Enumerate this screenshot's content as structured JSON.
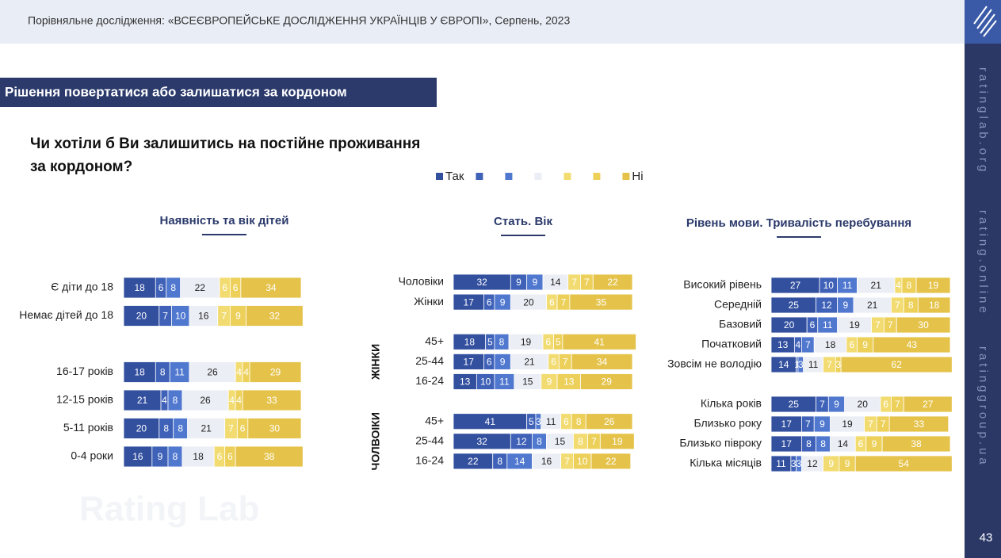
{
  "header": {
    "title": "Порівняльне дослідження: «ВСЕЄВРОПЕЙСЬКЕ ДОСЛІДЖЕННЯ УКРАЇНЦІВ У ЄВРОПІ», Серпень, 2023"
  },
  "section": {
    "title": "Рішення повертатися або залишатися за кордоном"
  },
  "question": {
    "lines": [
      "Чи хотіли б Ви залишитись на постійне проживання",
      "за кордоном?"
    ]
  },
  "sidebar": {
    "links": [
      "ratinglab.org",
      "rating.online",
      "ratinggroup.ua"
    ],
    "page_number": "43"
  },
  "watermark": "Rating Lab",
  "chart_data": [
    {
      "type": "bar",
      "orientation": "horizontal",
      "stacked": true,
      "legend": true,
      "title": "Наявність та вік дітей",
      "categories": [
        "Є діти до 18",
        "Немає дітей до 18",
        null,
        "16-17 років",
        "12-15 років",
        "5-11 років",
        "0-4 роки"
      ],
      "series": [
        {
          "name": "Так",
          "color": "#33509f",
          "label_color": "#ffffff",
          "values": [
            18,
            20,
            null,
            18,
            21,
            20,
            16
          ]
        },
        {
          "name": null,
          "color": "#3f62b8",
          "label_color": "#ffffff",
          "values": [
            6,
            7,
            null,
            8,
            4,
            8,
            9
          ]
        },
        {
          "name": null,
          "color": "#5078cf",
          "label_color": "#ffffff",
          "values": [
            8,
            10,
            null,
            11,
            8,
            8,
            8
          ]
        },
        {
          "name": null,
          "color": "#eceef5",
          "label_color": "#222222",
          "values": [
            22,
            16,
            null,
            26,
            26,
            21,
            18
          ]
        },
        {
          "name": null,
          "color": "#f2dc72",
          "label_color": "#ffffff",
          "values": [
            6,
            7,
            null,
            4,
            4,
            7,
            6
          ]
        },
        {
          "name": null,
          "color": "#ecd05a",
          "label_color": "#ffffff",
          "values": [
            6,
            9,
            null,
            4,
            4,
            6,
            6
          ]
        },
        {
          "name": "Ні",
          "color": "#e5c34b",
          "label_color": "#ffffff",
          "values": [
            34,
            32,
            null,
            29,
            33,
            30,
            38
          ]
        }
      ]
    },
    {
      "type": "bar",
      "orientation": "horizontal",
      "stacked": true,
      "legend": false,
      "title": "Стать. Вік",
      "categories": [
        "Чоловіки",
        "Жінки",
        null,
        "45+",
        "25-44",
        "16-24",
        null,
        "45+",
        "25-44",
        "16-24"
      ],
      "category_groups": [
        {
          "label": "ЖІНКИ",
          "first": 3,
          "last": 5
        },
        {
          "label": "ЧОЛВОІКИ",
          "first": 7,
          "last": 9
        }
      ],
      "series": [
        {
          "name": "Так",
          "color": "#33509f",
          "label_color": "#ffffff",
          "values": [
            32,
            17,
            null,
            18,
            17,
            13,
            null,
            41,
            32,
            22
          ]
        },
        {
          "name": null,
          "color": "#3f62b8",
          "label_color": "#ffffff",
          "values": [
            9,
            6,
            null,
            5,
            6,
            10,
            null,
            5,
            12,
            8
          ]
        },
        {
          "name": null,
          "color": "#5078cf",
          "label_color": "#ffffff",
          "values": [
            9,
            9,
            null,
            8,
            9,
            11,
            null,
            3,
            8,
            14
          ]
        },
        {
          "name": null,
          "color": "#eceef5",
          "label_color": "#222222",
          "values": [
            14,
            20,
            null,
            19,
            21,
            15,
            null,
            11,
            15,
            16
          ]
        },
        {
          "name": null,
          "color": "#f2dc72",
          "label_color": "#ffffff",
          "values": [
            7,
            6,
            null,
            6,
            6,
            9,
            null,
            6,
            8,
            7
          ]
        },
        {
          "name": null,
          "color": "#ecd05a",
          "label_color": "#ffffff",
          "values": [
            7,
            7,
            null,
            5,
            7,
            13,
            null,
            8,
            7,
            10
          ]
        },
        {
          "name": "Ні",
          "color": "#e5c34b",
          "label_color": "#ffffff",
          "values": [
            22,
            35,
            null,
            41,
            34,
            29,
            null,
            26,
            19,
            22
          ]
        }
      ]
    },
    {
      "type": "bar",
      "orientation": "horizontal",
      "stacked": true,
      "legend": false,
      "title": "Рівень мови. Тривалість перебування",
      "categories": [
        "Високий рівень",
        "Середній",
        "Базовий",
        "Початковий",
        "Зовсім не володію",
        null,
        "Кілька років",
        "Близько року",
        "Близько півроку",
        "Кілька місяців"
      ],
      "series": [
        {
          "name": "Так",
          "color": "#33509f",
          "label_color": "#ffffff",
          "values": [
            27,
            25,
            20,
            13,
            14,
            null,
            25,
            17,
            17,
            11
          ]
        },
        {
          "name": null,
          "color": "#3f62b8",
          "label_color": "#ffffff",
          "values": [
            10,
            12,
            6,
            4,
            1,
            null,
            7,
            7,
            8,
            3
          ]
        },
        {
          "name": null,
          "color": "#5078cf",
          "label_color": "#ffffff",
          "values": [
            11,
            9,
            11,
            7,
            3,
            null,
            9,
            9,
            8,
            3
          ]
        },
        {
          "name": null,
          "color": "#eceef5",
          "label_color": "#222222",
          "values": [
            21,
            21,
            19,
            18,
            11,
            null,
            20,
            19,
            14,
            12
          ]
        },
        {
          "name": null,
          "color": "#f2dc72",
          "label_color": "#ffffff",
          "values": [
            4,
            7,
            7,
            6,
            7,
            null,
            6,
            7,
            6,
            9
          ]
        },
        {
          "name": null,
          "color": "#ecd05a",
          "label_color": "#ffffff",
          "values": [
            8,
            8,
            7,
            9,
            3,
            null,
            7,
            7,
            9,
            9
          ]
        },
        {
          "name": "Ні",
          "color": "#e5c34b",
          "label_color": "#ffffff",
          "values": [
            19,
            18,
            30,
            43,
            62,
            null,
            27,
            33,
            38,
            54
          ]
        }
      ]
    }
  ]
}
